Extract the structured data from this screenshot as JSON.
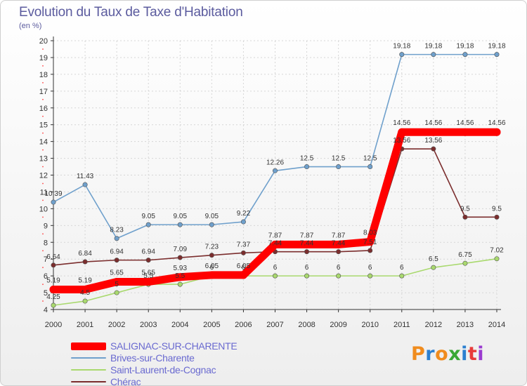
{
  "chart_data": {
    "type": "line",
    "title": "Evolution du Taux de Taxe d'Habitation",
    "subtitle": "(en %)",
    "xlabel": "",
    "ylabel": "",
    "x": [
      "2000",
      "2001",
      "2002",
      "2003",
      "2004",
      "2005",
      "2006",
      "2007",
      "2008",
      "2009",
      "2010",
      "2011",
      "2012",
      "2013",
      "2014"
    ],
    "ylim": [
      4,
      20
    ],
    "yticks": [
      "4",
      "5",
      "6",
      "7",
      "8",
      "9",
      "10",
      "11",
      "12",
      "13",
      "14",
      "15",
      "16",
      "17",
      "18",
      "19",
      "20"
    ],
    "grid": true,
    "legend_position": "bottom-left",
    "series": [
      {
        "name": "SALIGNAC-SUR-CHARENTE",
        "color": "#ff0000",
        "values": [
          5.19,
          5.19,
          5.65,
          5.65,
          5.93,
          6.05,
          6.05,
          7.87,
          7.87,
          7.87,
          8.03,
          14.56,
          14.56,
          14.56,
          14.56
        ],
        "labels": [
          "5.19",
          "5.19",
          "5.65",
          "5.65",
          "5.93",
          "6.05",
          "6.05",
          "7.87",
          "7.87",
          "7.87",
          "8.03",
          "14.56",
          "14.56",
          "14.56",
          "14.56"
        ]
      },
      {
        "name": "Brives-sur-Charente",
        "color": "#6fa0cc",
        "values": [
          10.39,
          11.43,
          8.23,
          9.05,
          9.05,
          9.05,
          9.22,
          12.26,
          12.5,
          12.5,
          12.5,
          19.18,
          19.18,
          19.18,
          19.18
        ],
        "labels": [
          "10.39",
          "11.43",
          "8.23",
          "9.05",
          "9.05",
          "9.05",
          "9.22",
          "12.26",
          "12.5",
          "12.5",
          "12.5",
          "19.18",
          "19.18",
          "19.18",
          "19.18"
        ]
      },
      {
        "name": "Saint-Laurent-de-Cognac",
        "color": "#a9d96e",
        "values": [
          4.25,
          4.5,
          5,
          5.5,
          5.5,
          6,
          6,
          6,
          6,
          6,
          6,
          6,
          6.5,
          6.75,
          7.02
        ],
        "labels": [
          "4.25",
          "4.5",
          "5",
          "5.5",
          "5.5",
          "6",
          "6",
          "6",
          "6",
          "6",
          "6",
          "6",
          "6.5",
          "6.75",
          "7.02"
        ]
      },
      {
        "name": "Chérac",
        "color": "#7b2d2d",
        "values": [
          6.64,
          6.84,
          6.94,
          6.94,
          7.09,
          7.23,
          7.37,
          7.44,
          7.44,
          7.44,
          7.51,
          13.56,
          13.56,
          9.5,
          9.5
        ],
        "labels": [
          "6.64",
          "6.84",
          "6.94",
          "6.94",
          "7.09",
          "7.23",
          "7.37",
          "7.44",
          "7.44",
          "7.44",
          "7.51",
          "13.56",
          "13.56",
          "9.5",
          "9.5"
        ]
      }
    ]
  },
  "legend": {
    "items": [
      {
        "label": "SALIGNAC-SUR-CHARENTE",
        "color": "#ff0000"
      },
      {
        "label": "Brives-sur-Charente",
        "color": "#6fa0cc"
      },
      {
        "label": "Saint-Laurent-de-Cognac",
        "color": "#a9d96e"
      },
      {
        "label": "Chérac",
        "color": "#7b2d2d"
      }
    ]
  },
  "brand": {
    "logo_text": "Proxiti",
    "logo_colors": [
      "#f08c1e",
      "#2b7fd0",
      "#f08c1e",
      "#3aa835",
      "#2b7fd0",
      "#e83b3b",
      "#9b3bd0"
    ]
  }
}
